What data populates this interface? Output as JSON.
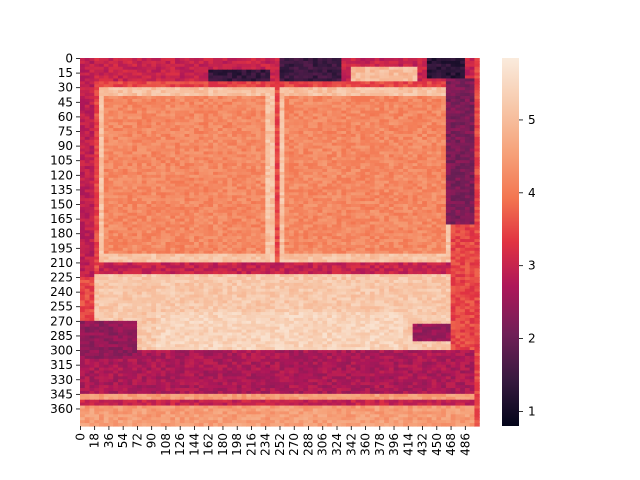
{
  "chart_data": {
    "type": "heatmap",
    "title": "",
    "xlabel": "",
    "ylabel": "",
    "n_rows": 378,
    "n_cols": 500,
    "row_step": 3,
    "col_step": 6,
    "x_tick_labels": [
      "0",
      "18",
      "36",
      "54",
      "72",
      "90",
      "108",
      "126",
      "144",
      "162",
      "180",
      "198",
      "216",
      "234",
      "252",
      "270",
      "288",
      "306",
      "324",
      "342",
      "360",
      "378",
      "396",
      "414",
      "432",
      "450",
      "468",
      "486"
    ],
    "y_tick_labels": [
      "0",
      "15",
      "30",
      "45",
      "60",
      "75",
      "90",
      "105",
      "120",
      "135",
      "150",
      "165",
      "180",
      "195",
      "210",
      "225",
      "240",
      "255",
      "270",
      "285",
      "300",
      "315",
      "330",
      "345",
      "360"
    ],
    "colorbar": {
      "min": 0.8,
      "max": 5.85,
      "ticks": [
        "1",
        "2",
        "3",
        "4",
        "5"
      ],
      "colormap": "rocket"
    },
    "regions": [
      {
        "name": "background",
        "rows": [
          0,
          378
        ],
        "cols": [
          0,
          500
        ],
        "value": 3.5
      },
      {
        "name": "left-field-frame",
        "rows": [
          30,
          210
        ],
        "cols": [
          24,
          244
        ],
        "value": 5.1
      },
      {
        "name": "left-field",
        "rows": [
          38,
          202
        ],
        "cols": [
          32,
          236
        ],
        "value": 4.2
      },
      {
        "name": "right-field-frame",
        "rows": [
          30,
          210
        ],
        "cols": [
          252,
          468
        ],
        "value": 5.1
      },
      {
        "name": "right-field",
        "rows": [
          38,
          202
        ],
        "cols": [
          260,
          460
        ],
        "value": 4.2
      },
      {
        "name": "upper-dark-strip",
        "rows": [
          0,
          24
        ],
        "cols": [
          0,
          500
        ],
        "value": 3.0
      },
      {
        "name": "top-dark-patch-left",
        "rows": [
          12,
          24
        ],
        "cols": [
          160,
          238
        ],
        "value": 1.4
      },
      {
        "name": "top-dark-patch-right",
        "rows": [
          0,
          24
        ],
        "cols": [
          250,
          330
        ],
        "value": 1.5
      },
      {
        "name": "top-light-box",
        "rows": [
          10,
          25
        ],
        "cols": [
          340,
          424
        ],
        "value": 5.0
      },
      {
        "name": "top-right-dark",
        "rows": [
          0,
          20
        ],
        "cols": [
          440,
          488
        ],
        "value": 1.3
      },
      {
        "name": "right-edge-dark",
        "rows": [
          20,
          170
        ],
        "cols": [
          464,
          500
        ],
        "value": 2.2
      },
      {
        "name": "left-edge-dark",
        "rows": [
          0,
          225
        ],
        "cols": [
          0,
          20
        ],
        "value": 2.9
      },
      {
        "name": "field-bottom-band",
        "rows": [
          210,
          222
        ],
        "cols": [
          24,
          468
        ],
        "value": 3.0
      },
      {
        "name": "lower-bright-zone",
        "rows": [
          222,
          300
        ],
        "cols": [
          20,
          468
        ],
        "value": 5.2
      },
      {
        "name": "lower-center-rect",
        "rows": [
          262,
          308
        ],
        "cols": [
          96,
          408
        ],
        "value": 5.4
      },
      {
        "name": "lower-right-dark",
        "rows": [
          272,
          292
        ],
        "cols": [
          420,
          468
        ],
        "value": 2.5
      },
      {
        "name": "bottom-dark-band",
        "rows": [
          300,
          345
        ],
        "cols": [
          0,
          500
        ],
        "value": 2.7
      },
      {
        "name": "lower-left-dark",
        "rows": [
          270,
          310
        ],
        "cols": [
          0,
          70
        ],
        "value": 2.4
      },
      {
        "name": "bottom-bright-band",
        "rows": [
          345,
          378
        ],
        "cols": [
          0,
          500
        ],
        "value": 4.5
      },
      {
        "name": "bottom-thin-dark",
        "rows": [
          352,
          356
        ],
        "cols": [
          0,
          500
        ],
        "value": 3.0
      }
    ]
  }
}
